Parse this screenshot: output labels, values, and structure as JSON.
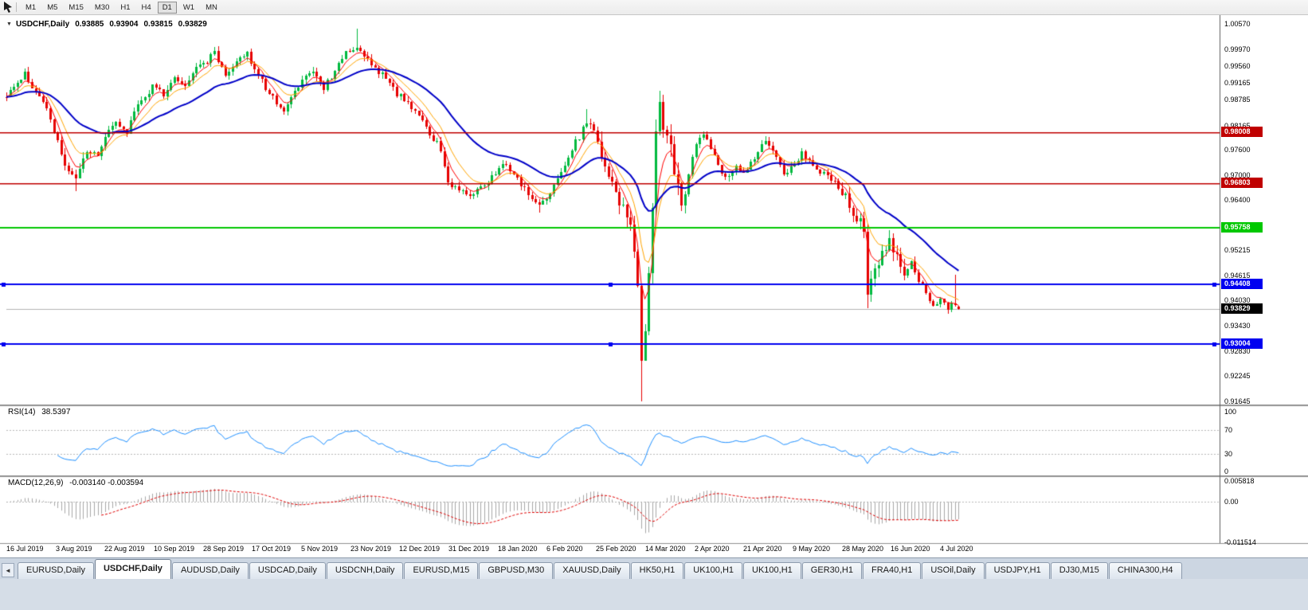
{
  "toolbar": {
    "timeframes": [
      {
        "label": "M1"
      },
      {
        "label": "M5"
      },
      {
        "label": "M15"
      },
      {
        "label": "M30"
      },
      {
        "label": "H1"
      },
      {
        "label": "H4"
      },
      {
        "label": "D1",
        "active": true
      },
      {
        "label": "W1"
      },
      {
        "label": "MN"
      }
    ]
  },
  "chart_header": {
    "collapse_icon": "▼",
    "symbol": "USDCHF,Daily",
    "open": "0.93885",
    "high": "0.93904",
    "low": "0.93815",
    "close": "0.93829"
  },
  "panes": {
    "rsi": {
      "name": "RSI(14)",
      "value": "38.5397",
      "axis_ticks": [
        "100",
        "70",
        "30",
        "0"
      ],
      "levels": [
        70,
        30
      ],
      "line_color": "#1e90ff"
    },
    "macd": {
      "name": "MACD(12,26,9)",
      "values": "-0.003140 -0.003594",
      "axis_ticks": [
        "0.005818",
        "0.00",
        "-0.011514"
      ],
      "histogram_color": "#a8a8a8",
      "signal_color": "#e00000"
    }
  },
  "chart_data": {
    "type": "candlestick",
    "symbol": "USDCHF",
    "timeframe": "Daily",
    "y_range": {
      "min": 0.91575,
      "max": 1.00792
    },
    "y_ticks": [
      "1.00570",
      "0.99970",
      "0.99560",
      "0.99165",
      "0.98785",
      "0.98165",
      "0.97600",
      "0.97000",
      "0.96400",
      "0.95215",
      "0.94615",
      "0.94030",
      "0.93430",
      "0.92830",
      "0.92245",
      "0.91645"
    ],
    "levels": [
      {
        "price": 0.98008,
        "label": "0.98008",
        "color": "#c00000",
        "width": 1.5,
        "handles": false
      },
      {
        "price": 0.96803,
        "label": "0.96803",
        "color": "#c00000",
        "width": 1.5,
        "handles": false
      },
      {
        "price": 0.95758,
        "label": "0.95758",
        "color": "#00c800",
        "width": 2,
        "handles": false
      },
      {
        "price": 0.94408,
        "label": "0.94408",
        "color": "#0000f0",
        "width": 2,
        "handles": true
      },
      {
        "price": 0.93004,
        "label": "0.93004",
        "color": "#0000f0",
        "width": 2,
        "handles": true
      }
    ],
    "current_price": {
      "value": 0.93829,
      "label": "0.93829",
      "tag_color": "#000000",
      "line_color": "#b4b4b4"
    },
    "time_labels": [
      "16 Jul 2019",
      "3 Aug 2019",
      "22 Aug 2019",
      "10 Sep 2019",
      "28 Sep 2019",
      "17 Oct 2019",
      "5 Nov 2019",
      "23 Nov 2019",
      "12 Dec 2019",
      "31 Dec 2019",
      "18 Jan 2020",
      "6 Feb 2020",
      "25 Feb 2020",
      "14 Mar 2020",
      "2 Apr 2020",
      "21 Apr 2020",
      "9 May 2020",
      "28 May 2020",
      "16 Jun 2020",
      "4 Jul 2020"
    ],
    "candle_count": 262,
    "up_color": "#00b93e",
    "down_color": "#e60000",
    "close_anchors": [
      [
        0,
        0.988
      ],
      [
        2,
        0.9915
      ],
      [
        5,
        0.994
      ],
      [
        8,
        0.9895
      ],
      [
        11,
        0.9862
      ],
      [
        13,
        0.98
      ],
      [
        16,
        0.9718
      ],
      [
        19,
        0.9694
      ],
      [
        22,
        0.9762
      ],
      [
        25,
        0.9742
      ],
      [
        27,
        0.9788
      ],
      [
        30,
        0.9828
      ],
      [
        33,
        0.9802
      ],
      [
        36,
        0.9868
      ],
      [
        40,
        0.9908
      ],
      [
        43,
        0.9888
      ],
      [
        46,
        0.9932
      ],
      [
        49,
        0.9906
      ],
      [
        52,
        0.9948
      ],
      [
        54,
        0.9962
      ],
      [
        57,
        0.9988
      ],
      [
        60,
        0.9938
      ],
      [
        63,
        0.9972
      ],
      [
        66,
        0.999
      ],
      [
        68,
        0.9952
      ],
      [
        71,
        0.9906
      ],
      [
        74,
        0.9872
      ],
      [
        76,
        0.9852
      ],
      [
        79,
        0.9894
      ],
      [
        81,
        0.9918
      ],
      [
        84,
        0.9944
      ],
      [
        87,
        0.9906
      ],
      [
        90,
        0.9948
      ],
      [
        93,
        0.9988
      ],
      [
        96,
        1.0
      ],
      [
        99,
        0.9972
      ],
      [
        102,
        0.9944
      ],
      [
        105,
        0.9918
      ],
      [
        107,
        0.9894
      ],
      [
        110,
        0.9868
      ],
      [
        113,
        0.984
      ],
      [
        116,
        0.98
      ],
      [
        119,
        0.9764
      ],
      [
        121,
        0.9688
      ],
      [
        124,
        0.9662
      ],
      [
        127,
        0.9646
      ],
      [
        130,
        0.9668
      ],
      [
        134,
        0.9708
      ],
      [
        137,
        0.9724
      ],
      [
        140,
        0.969
      ],
      [
        143,
        0.9656
      ],
      [
        146,
        0.9628
      ],
      [
        148,
        0.9646
      ],
      [
        151,
        0.9692
      ],
      [
        154,
        0.9742
      ],
      [
        157,
        0.9792
      ],
      [
        159,
        0.9826
      ],
      [
        161,
        0.9798
      ],
      [
        163,
        0.9748
      ],
      [
        165,
        0.97
      ],
      [
        167,
        0.9652
      ],
      [
        169,
        0.9614
      ],
      [
        171,
        0.9578
      ],
      [
        172,
        0.952
      ],
      [
        173,
        0.943
      ],
      [
        174,
        0.924
      ],
      [
        175,
        0.932
      ],
      [
        176,
        0.948
      ],
      [
        177,
        0.964
      ],
      [
        178,
        0.979
      ],
      [
        179,
        0.9852
      ],
      [
        181,
        0.98
      ],
      [
        183,
        0.9706
      ],
      [
        185,
        0.9624
      ],
      [
        187,
        0.9706
      ],
      [
        189,
        0.9772
      ],
      [
        191,
        0.98
      ],
      [
        194,
        0.9742
      ],
      [
        197,
        0.9692
      ],
      [
        200,
        0.9722
      ],
      [
        202,
        0.9702
      ],
      [
        205,
        0.9744
      ],
      [
        208,
        0.9774
      ],
      [
        211,
        0.9742
      ],
      [
        213,
        0.9704
      ],
      [
        215,
        0.9716
      ],
      [
        218,
        0.9752
      ],
      [
        221,
        0.9722
      ],
      [
        224,
        0.9702
      ],
      [
        227,
        0.9684
      ],
      [
        229,
        0.9662
      ],
      [
        231,
        0.9622
      ],
      [
        233,
        0.9592
      ],
      [
        235,
        0.9572
      ],
      [
        236,
        0.9425
      ],
      [
        238,
        0.9482
      ],
      [
        240,
        0.952
      ],
      [
        242,
        0.954
      ],
      [
        244,
        0.9502
      ],
      [
        246,
        0.9468
      ],
      [
        248,
        0.9492
      ],
      [
        250,
        0.9452
      ],
      [
        252,
        0.9422
      ],
      [
        254,
        0.9392
      ],
      [
        256,
        0.9412
      ],
      [
        258,
        0.9388
      ],
      [
        259,
        0.9398
      ],
      [
        260,
        0.9396
      ],
      [
        261,
        0.93829
      ]
    ],
    "wick_overrides": {
      "5": {
        "high": 0.9952
      },
      "19": {
        "low": 0.9662
      },
      "96": {
        "high": 1.0046
      },
      "146": {
        "low": 0.961
      },
      "159": {
        "high": 0.9856
      },
      "174": {
        "low": 0.91645
      },
      "179": {
        "high": 0.9898
      },
      "236": {
        "low": 0.9386
      },
      "260": {
        "high": 0.9464
      }
    },
    "volatility_zones": [
      [
        13,
        21,
        1.4
      ],
      [
        163,
        186,
        2.8
      ],
      [
        229,
        246,
        1.9
      ]
    ],
    "last_candle": {
      "open": 0.93885,
      "high": 0.93904,
      "low": 0.93815,
      "close": 0.93829
    },
    "moving_averages": [
      {
        "period": 5,
        "type": "ema",
        "color": "#ff0000",
        "width": 1
      },
      {
        "period": 10,
        "type": "ema",
        "color": "#ffa500",
        "width": 1
      },
      {
        "period": 30,
        "type": "ema",
        "color": "#0000c8",
        "width": 2
      }
    ],
    "rsi_period": 14,
    "macd_params": [
      12,
      26,
      9
    ]
  },
  "tabs": {
    "scroll_left": "◄",
    "items": [
      {
        "label": "EURUSD,Daily"
      },
      {
        "label": "USDCHF,Daily",
        "active": true
      },
      {
        "label": "AUDUSD,Daily"
      },
      {
        "label": "USDCAD,Daily"
      },
      {
        "label": "USDCNH,Daily"
      },
      {
        "label": "EURUSD,M15"
      },
      {
        "label": "GBPUSD,M30"
      },
      {
        "label": "XAUUSD,Daily"
      },
      {
        "label": "HK50,H1"
      },
      {
        "label": "UK100,H1"
      },
      {
        "label": "UK100,H1"
      },
      {
        "label": "GER30,H1"
      },
      {
        "label": "FRA40,H1"
      },
      {
        "label": "USOil,Daily"
      },
      {
        "label": "USDJPY,H1"
      },
      {
        "label": "DJ30,M15"
      },
      {
        "label": "CHINA300,H4"
      }
    ]
  }
}
